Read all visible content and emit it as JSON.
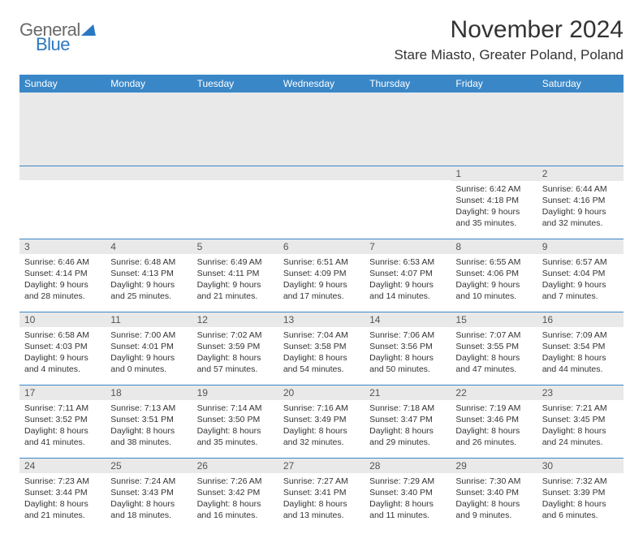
{
  "brand": {
    "word1": "General",
    "word2": "Blue"
  },
  "title": {
    "month": "November 2024",
    "location": "Stare Miasto, Greater Poland, Poland"
  },
  "colors": {
    "header_bg": "#3a87c7",
    "header_text": "#ffffff",
    "daynum_bg": "#e9e9e9",
    "border": "#3a87c7",
    "text": "#333333",
    "logo_gray": "#6a6a6a",
    "logo_blue": "#2b78c2"
  },
  "weekdays": [
    "Sunday",
    "Monday",
    "Tuesday",
    "Wednesday",
    "Thursday",
    "Friday",
    "Saturday"
  ],
  "weeks": [
    [
      {
        "n": "",
        "lines": []
      },
      {
        "n": "",
        "lines": []
      },
      {
        "n": "",
        "lines": []
      },
      {
        "n": "",
        "lines": []
      },
      {
        "n": "",
        "lines": []
      },
      {
        "n": "1",
        "lines": [
          "Sunrise: 6:42 AM",
          "Sunset: 4:18 PM",
          "Daylight: 9 hours and 35 minutes."
        ]
      },
      {
        "n": "2",
        "lines": [
          "Sunrise: 6:44 AM",
          "Sunset: 4:16 PM",
          "Daylight: 9 hours and 32 minutes."
        ]
      }
    ],
    [
      {
        "n": "3",
        "lines": [
          "Sunrise: 6:46 AM",
          "Sunset: 4:14 PM",
          "Daylight: 9 hours and 28 minutes."
        ]
      },
      {
        "n": "4",
        "lines": [
          "Sunrise: 6:48 AM",
          "Sunset: 4:13 PM",
          "Daylight: 9 hours and 25 minutes."
        ]
      },
      {
        "n": "5",
        "lines": [
          "Sunrise: 6:49 AM",
          "Sunset: 4:11 PM",
          "Daylight: 9 hours and 21 minutes."
        ]
      },
      {
        "n": "6",
        "lines": [
          "Sunrise: 6:51 AM",
          "Sunset: 4:09 PM",
          "Daylight: 9 hours and 17 minutes."
        ]
      },
      {
        "n": "7",
        "lines": [
          "Sunrise: 6:53 AM",
          "Sunset: 4:07 PM",
          "Daylight: 9 hours and 14 minutes."
        ]
      },
      {
        "n": "8",
        "lines": [
          "Sunrise: 6:55 AM",
          "Sunset: 4:06 PM",
          "Daylight: 9 hours and 10 minutes."
        ]
      },
      {
        "n": "9",
        "lines": [
          "Sunrise: 6:57 AM",
          "Sunset: 4:04 PM",
          "Daylight: 9 hours and 7 minutes."
        ]
      }
    ],
    [
      {
        "n": "10",
        "lines": [
          "Sunrise: 6:58 AM",
          "Sunset: 4:03 PM",
          "Daylight: 9 hours and 4 minutes."
        ]
      },
      {
        "n": "11",
        "lines": [
          "Sunrise: 7:00 AM",
          "Sunset: 4:01 PM",
          "Daylight: 9 hours and 0 minutes."
        ]
      },
      {
        "n": "12",
        "lines": [
          "Sunrise: 7:02 AM",
          "Sunset: 3:59 PM",
          "Daylight: 8 hours and 57 minutes."
        ]
      },
      {
        "n": "13",
        "lines": [
          "Sunrise: 7:04 AM",
          "Sunset: 3:58 PM",
          "Daylight: 8 hours and 54 minutes."
        ]
      },
      {
        "n": "14",
        "lines": [
          "Sunrise: 7:06 AM",
          "Sunset: 3:56 PM",
          "Daylight: 8 hours and 50 minutes."
        ]
      },
      {
        "n": "15",
        "lines": [
          "Sunrise: 7:07 AM",
          "Sunset: 3:55 PM",
          "Daylight: 8 hours and 47 minutes."
        ]
      },
      {
        "n": "16",
        "lines": [
          "Sunrise: 7:09 AM",
          "Sunset: 3:54 PM",
          "Daylight: 8 hours and 44 minutes."
        ]
      }
    ],
    [
      {
        "n": "17",
        "lines": [
          "Sunrise: 7:11 AM",
          "Sunset: 3:52 PM",
          "Daylight: 8 hours and 41 minutes."
        ]
      },
      {
        "n": "18",
        "lines": [
          "Sunrise: 7:13 AM",
          "Sunset: 3:51 PM",
          "Daylight: 8 hours and 38 minutes."
        ]
      },
      {
        "n": "19",
        "lines": [
          "Sunrise: 7:14 AM",
          "Sunset: 3:50 PM",
          "Daylight: 8 hours and 35 minutes."
        ]
      },
      {
        "n": "20",
        "lines": [
          "Sunrise: 7:16 AM",
          "Sunset: 3:49 PM",
          "Daylight: 8 hours and 32 minutes."
        ]
      },
      {
        "n": "21",
        "lines": [
          "Sunrise: 7:18 AM",
          "Sunset: 3:47 PM",
          "Daylight: 8 hours and 29 minutes."
        ]
      },
      {
        "n": "22",
        "lines": [
          "Sunrise: 7:19 AM",
          "Sunset: 3:46 PM",
          "Daylight: 8 hours and 26 minutes."
        ]
      },
      {
        "n": "23",
        "lines": [
          "Sunrise: 7:21 AM",
          "Sunset: 3:45 PM",
          "Daylight: 8 hours and 24 minutes."
        ]
      }
    ],
    [
      {
        "n": "24",
        "lines": [
          "Sunrise: 7:23 AM",
          "Sunset: 3:44 PM",
          "Daylight: 8 hours and 21 minutes."
        ]
      },
      {
        "n": "25",
        "lines": [
          "Sunrise: 7:24 AM",
          "Sunset: 3:43 PM",
          "Daylight: 8 hours and 18 minutes."
        ]
      },
      {
        "n": "26",
        "lines": [
          "Sunrise: 7:26 AM",
          "Sunset: 3:42 PM",
          "Daylight: 8 hours and 16 minutes."
        ]
      },
      {
        "n": "27",
        "lines": [
          "Sunrise: 7:27 AM",
          "Sunset: 3:41 PM",
          "Daylight: 8 hours and 13 minutes."
        ]
      },
      {
        "n": "28",
        "lines": [
          "Sunrise: 7:29 AM",
          "Sunset: 3:40 PM",
          "Daylight: 8 hours and 11 minutes."
        ]
      },
      {
        "n": "29",
        "lines": [
          "Sunrise: 7:30 AM",
          "Sunset: 3:40 PM",
          "Daylight: 8 hours and 9 minutes."
        ]
      },
      {
        "n": "30",
        "lines": [
          "Sunrise: 7:32 AM",
          "Sunset: 3:39 PM",
          "Daylight: 8 hours and 6 minutes."
        ]
      }
    ]
  ]
}
